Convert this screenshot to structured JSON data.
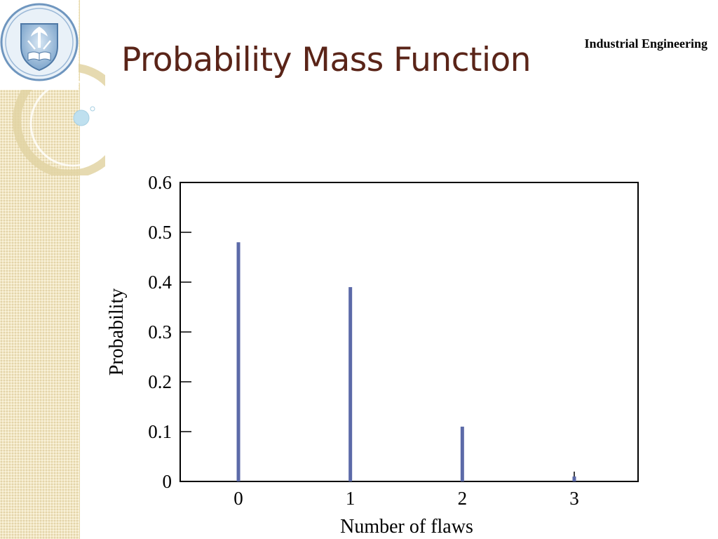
{
  "slide": {
    "title": "Probability Mass Function",
    "department": "Industrial Engineering"
  },
  "colors": {
    "title": "#5a2418",
    "bar": "#5c6aa8",
    "side_band": "#f2e7c3"
  },
  "chart_data": {
    "type": "bar",
    "categories": [
      "0",
      "1",
      "2",
      "3"
    ],
    "x": [
      0,
      1,
      2,
      3
    ],
    "values": [
      0.48,
      0.39,
      0.11,
      0.01
    ],
    "xlabel": "Number of flaws",
    "ylabel": "Probability",
    "xlim": [
      -0.52,
      3.57
    ],
    "ylim": [
      0,
      0.6
    ],
    "yticks": [
      0,
      0.1,
      0.2,
      0.3,
      0.4,
      0.5,
      0.6
    ],
    "ytick_labels": [
      "0",
      "0.1",
      "0.2",
      "0.3",
      "0.4",
      "0.5",
      "0.6"
    ],
    "grid": false,
    "legend": "none"
  }
}
